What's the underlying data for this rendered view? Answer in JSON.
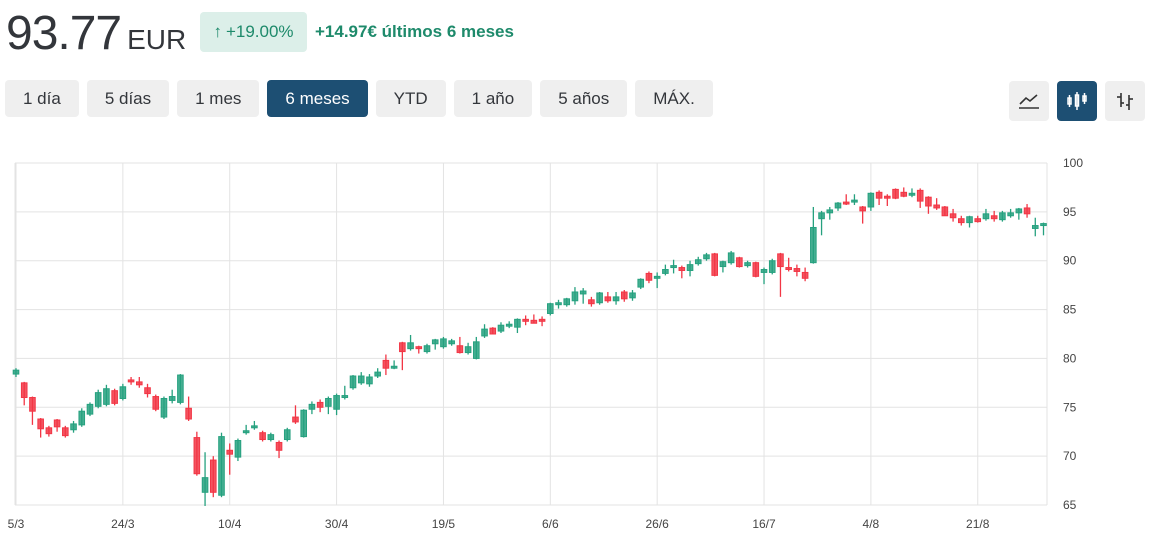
{
  "header": {
    "price": "93.77",
    "currency": "EUR",
    "change_pct": "+19.00%",
    "change_text": "+14.97€ últimos 6 meses",
    "arrow_icon": "arrow-up-icon"
  },
  "ranges": [
    {
      "label": "1 día"
    },
    {
      "label": "5 días"
    },
    {
      "label": "1 mes"
    },
    {
      "label": "6 meses",
      "active": true
    },
    {
      "label": "YTD"
    },
    {
      "label": "1 año"
    },
    {
      "label": "5 años"
    },
    {
      "label": "MÁX."
    }
  ],
  "chart_types": [
    {
      "icon": "line-chart-icon"
    },
    {
      "icon": "candlestick-icon",
      "active": true
    },
    {
      "icon": "ohlc-bar-icon"
    }
  ],
  "colors": {
    "up": "#26a17f",
    "down": "#f23645",
    "active": "#1d4f73",
    "badge_bg": "#dcefe9",
    "badge_text": "#1e8a6b"
  },
  "chart_data": {
    "type": "candlestick",
    "ylim": [
      65,
      100
    ],
    "yticks": [
      65,
      70,
      75,
      80,
      85,
      90,
      95,
      100
    ],
    "xticks": [
      {
        "label": "5/3",
        "index": 0
      },
      {
        "label": "24/3",
        "index": 13
      },
      {
        "label": "10/4",
        "index": 26
      },
      {
        "label": "30/4",
        "index": 39
      },
      {
        "label": "19/5",
        "index": 52
      },
      {
        "label": "6/6",
        "index": 65
      },
      {
        "label": "26/6",
        "index": 78
      },
      {
        "label": "16/7",
        "index": 91
      },
      {
        "label": "4/8",
        "index": 104
      },
      {
        "label": "21/8",
        "index": 117
      }
    ],
    "grid": true,
    "candles_ohlc": [
      [
        78.4,
        79.0,
        78.1,
        78.8
      ],
      [
        77.5,
        77.6,
        75.2,
        76.0
      ],
      [
        76.0,
        76.1,
        73.2,
        74.6
      ],
      [
        73.8,
        73.9,
        71.9,
        72.8
      ],
      [
        72.9,
        73.1,
        72.0,
        72.3
      ],
      [
        73.7,
        73.8,
        72.5,
        73.0
      ],
      [
        72.9,
        73.1,
        71.9,
        72.1
      ],
      [
        72.7,
        73.6,
        72.4,
        73.3
      ],
      [
        73.2,
        74.9,
        73.0,
        74.6
      ],
      [
        74.3,
        75.5,
        74.1,
        75.3
      ],
      [
        75.1,
        76.8,
        74.9,
        76.5
      ],
      [
        75.3,
        77.3,
        75.1,
        76.9
      ],
      [
        76.7,
        76.9,
        75.2,
        75.4
      ],
      [
        75.9,
        77.4,
        75.7,
        77.1
      ],
      [
        77.8,
        78.1,
        77.3,
        77.6
      ],
      [
        77.6,
        78.1,
        77.0,
        77.3
      ],
      [
        77.0,
        77.4,
        76.0,
        76.4
      ],
      [
        76.1,
        76.3,
        74.6,
        74.8
      ],
      [
        74.0,
        76.1,
        73.8,
        75.9
      ],
      [
        75.7,
        76.8,
        75.4,
        76.1
      ],
      [
        75.5,
        78.4,
        75.3,
        78.3
      ],
      [
        74.9,
        76.1,
        73.6,
        73.8
      ],
      [
        71.9,
        72.5,
        68.0,
        68.2
      ],
      [
        66.3,
        70.4,
        64.9,
        67.8
      ],
      [
        69.6,
        70.0,
        65.8,
        66.3
      ],
      [
        66.0,
        72.4,
        65.8,
        72.0
      ],
      [
        70.6,
        71.3,
        68.1,
        70.2
      ],
      [
        69.9,
        71.8,
        69.5,
        71.6
      ],
      [
        72.4,
        73.2,
        72.2,
        72.6
      ],
      [
        72.9,
        73.6,
        72.7,
        73.1
      ],
      [
        72.4,
        72.6,
        71.5,
        71.7
      ],
      [
        71.7,
        72.4,
        71.5,
        72.2
      ],
      [
        71.4,
        71.6,
        69.8,
        70.6
      ],
      [
        71.7,
        72.9,
        71.5,
        72.7
      ],
      [
        74.0,
        75.2,
        73.3,
        73.5
      ],
      [
        72.0,
        74.8,
        71.9,
        74.7
      ],
      [
        74.8,
        75.6,
        74.3,
        75.3
      ],
      [
        75.5,
        75.8,
        74.5,
        75.0
      ],
      [
        75.1,
        76.1,
        74.3,
        75.9
      ],
      [
        74.8,
        76.4,
        74.2,
        76.2
      ],
      [
        76.0,
        77.2,
        75.8,
        76.2
      ],
      [
        77.0,
        78.3,
        76.8,
        78.2
      ],
      [
        77.5,
        78.6,
        77.3,
        78.2
      ],
      [
        77.4,
        78.4,
        77.1,
        78.1
      ],
      [
        78.2,
        79.0,
        78.0,
        78.6
      ],
      [
        79.8,
        80.4,
        78.3,
        79.0
      ],
      [
        79.0,
        79.8,
        78.9,
        79.2
      ],
      [
        81.6,
        81.7,
        78.8,
        80.7
      ],
      [
        81.0,
        82.4,
        80.8,
        81.6
      ],
      [
        81.2,
        81.3,
        80.5,
        81.0
      ],
      [
        80.7,
        81.5,
        80.5,
        81.3
      ],
      [
        81.5,
        82.0,
        80.9,
        81.9
      ],
      [
        81.2,
        82.2,
        81.0,
        82.0
      ],
      [
        81.5,
        82.0,
        81.3,
        81.8
      ],
      [
        81.3,
        82.2,
        80.5,
        80.6
      ],
      [
        80.6,
        81.6,
        80.4,
        81.2
      ],
      [
        80.0,
        82.2,
        79.9,
        81.7
      ],
      [
        82.3,
        83.5,
        82.1,
        83.0
      ],
      [
        83.1,
        83.2,
        82.5,
        82.5
      ],
      [
        82.8,
        83.7,
        82.6,
        83.4
      ],
      [
        83.3,
        83.8,
        83.1,
        83.5
      ],
      [
        83.2,
        84.1,
        82.6,
        84.0
      ],
      [
        84.0,
        84.4,
        83.4,
        83.8
      ],
      [
        83.9,
        84.5,
        83.6,
        83.6
      ],
      [
        84.0,
        84.3,
        83.3,
        83.8
      ],
      [
        84.6,
        85.7,
        84.4,
        85.6
      ],
      [
        85.5,
        86.0,
        85.1,
        85.7
      ],
      [
        85.5,
        86.2,
        85.3,
        86.1
      ],
      [
        85.9,
        87.3,
        85.5,
        86.8
      ],
      [
        86.6,
        87.2,
        85.6,
        86.9
      ],
      [
        86.0,
        86.3,
        85.3,
        85.6
      ],
      [
        85.7,
        86.8,
        85.5,
        86.7
      ],
      [
        86.3,
        86.8,
        85.7,
        85.9
      ],
      [
        85.9,
        86.8,
        85.5,
        86.3
      ],
      [
        86.8,
        87.0,
        85.8,
        86.1
      ],
      [
        86.2,
        87.0,
        85.9,
        86.7
      ],
      [
        87.3,
        88.2,
        87.1,
        88.1
      ],
      [
        88.7,
        88.9,
        87.7,
        88.0
      ],
      [
        88.2,
        88.8,
        87.2,
        88.4
      ],
      [
        88.7,
        89.6,
        88.5,
        89.1
      ],
      [
        89.3,
        90.1,
        88.7,
        89.5
      ],
      [
        89.3,
        89.5,
        88.2,
        89.0
      ],
      [
        89.0,
        90.0,
        88.4,
        89.6
      ],
      [
        89.7,
        90.4,
        89.5,
        90.1
      ],
      [
        90.2,
        90.8,
        90.0,
        90.6
      ],
      [
        90.7,
        90.8,
        88.4,
        88.5
      ],
      [
        89.4,
        90.0,
        88.8,
        89.9
      ],
      [
        89.8,
        91.0,
        89.6,
        90.8
      ],
      [
        90.3,
        90.4,
        89.3,
        89.4
      ],
      [
        89.5,
        90.0,
        89.3,
        89.8
      ],
      [
        89.8,
        89.9,
        88.3,
        88.4
      ],
      [
        88.8,
        89.3,
        87.6,
        89.1
      ],
      [
        88.8,
        90.2,
        88.6,
        90.0
      ],
      [
        90.7,
        90.8,
        86.3,
        89.4
      ],
      [
        89.3,
        90.3,
        88.9,
        89.1
      ],
      [
        89.2,
        89.6,
        88.4,
        88.9
      ],
      [
        88.8,
        89.3,
        87.9,
        88.2
      ],
      [
        89.8,
        95.5,
        89.7,
        93.4
      ],
      [
        94.3,
        95.1,
        92.6,
        94.9
      ],
      [
        94.9,
        95.5,
        94.2,
        95.2
      ],
      [
        95.4,
        96.0,
        95.1,
        95.9
      ],
      [
        96.0,
        96.8,
        95.7,
        95.8
      ],
      [
        96.0,
        96.8,
        95.7,
        96.2
      ],
      [
        95.5,
        95.6,
        93.8,
        95.1
      ],
      [
        95.5,
        97.0,
        95.1,
        96.9
      ],
      [
        97.0,
        97.2,
        95.7,
        96.4
      ],
      [
        96.6,
        96.8,
        95.6,
        96.4
      ],
      [
        97.3,
        97.4,
        96.3,
        96.4
      ],
      [
        97.0,
        97.5,
        96.5,
        96.6
      ],
      [
        96.7,
        97.4,
        96.5,
        96.9
      ],
      [
        97.2,
        97.4,
        95.4,
        96.1
      ],
      [
        96.5,
        96.6,
        94.8,
        95.6
      ],
      [
        95.7,
        96.4,
        95.2,
        95.4
      ],
      [
        95.5,
        95.6,
        94.6,
        94.6
      ],
      [
        94.8,
        95.3,
        94.0,
        94.4
      ],
      [
        94.3,
        94.6,
        93.6,
        93.9
      ],
      [
        93.9,
        94.6,
        93.4,
        94.5
      ],
      [
        94.3,
        94.6,
        93.9,
        94.0
      ],
      [
        94.3,
        95.3,
        94.1,
        94.8
      ],
      [
        94.6,
        95.1,
        94.0,
        94.3
      ],
      [
        94.2,
        95.1,
        94.0,
        94.9
      ],
      [
        94.6,
        95.3,
        94.4,
        94.9
      ],
      [
        94.9,
        95.4,
        94.2,
        95.3
      ],
      [
        95.4,
        95.8,
        94.4,
        94.8
      ],
      [
        93.3,
        94.4,
        92.5,
        93.6
      ],
      [
        93.6,
        93.9,
        92.6,
        93.8
      ]
    ]
  }
}
